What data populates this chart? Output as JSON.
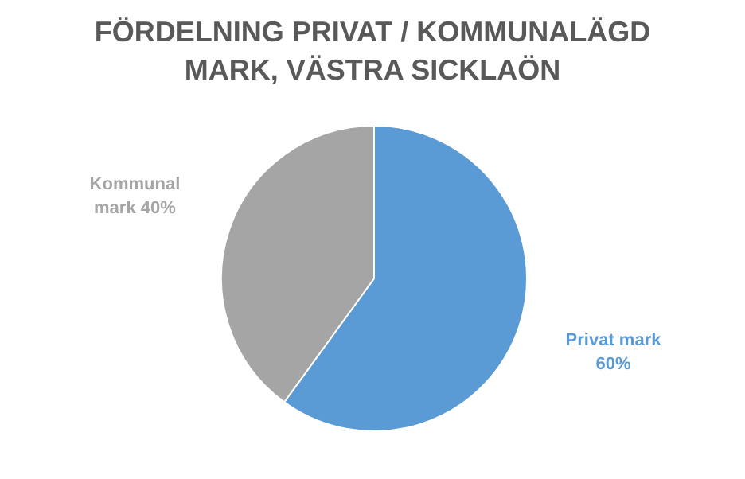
{
  "chart_data": {
    "type": "pie",
    "title": "FÖRDELNING PRIVAT / KOMMUNALÄGD MARK, VÄSTRA SICKLAÖN",
    "categories": [
      "Privat mark",
      "Kommunal mark"
    ],
    "values": [
      60,
      40
    ],
    "colors": [
      "#5b9bd5",
      "#a5a5a5"
    ],
    "value_labels": [
      "60%",
      "40%"
    ]
  }
}
